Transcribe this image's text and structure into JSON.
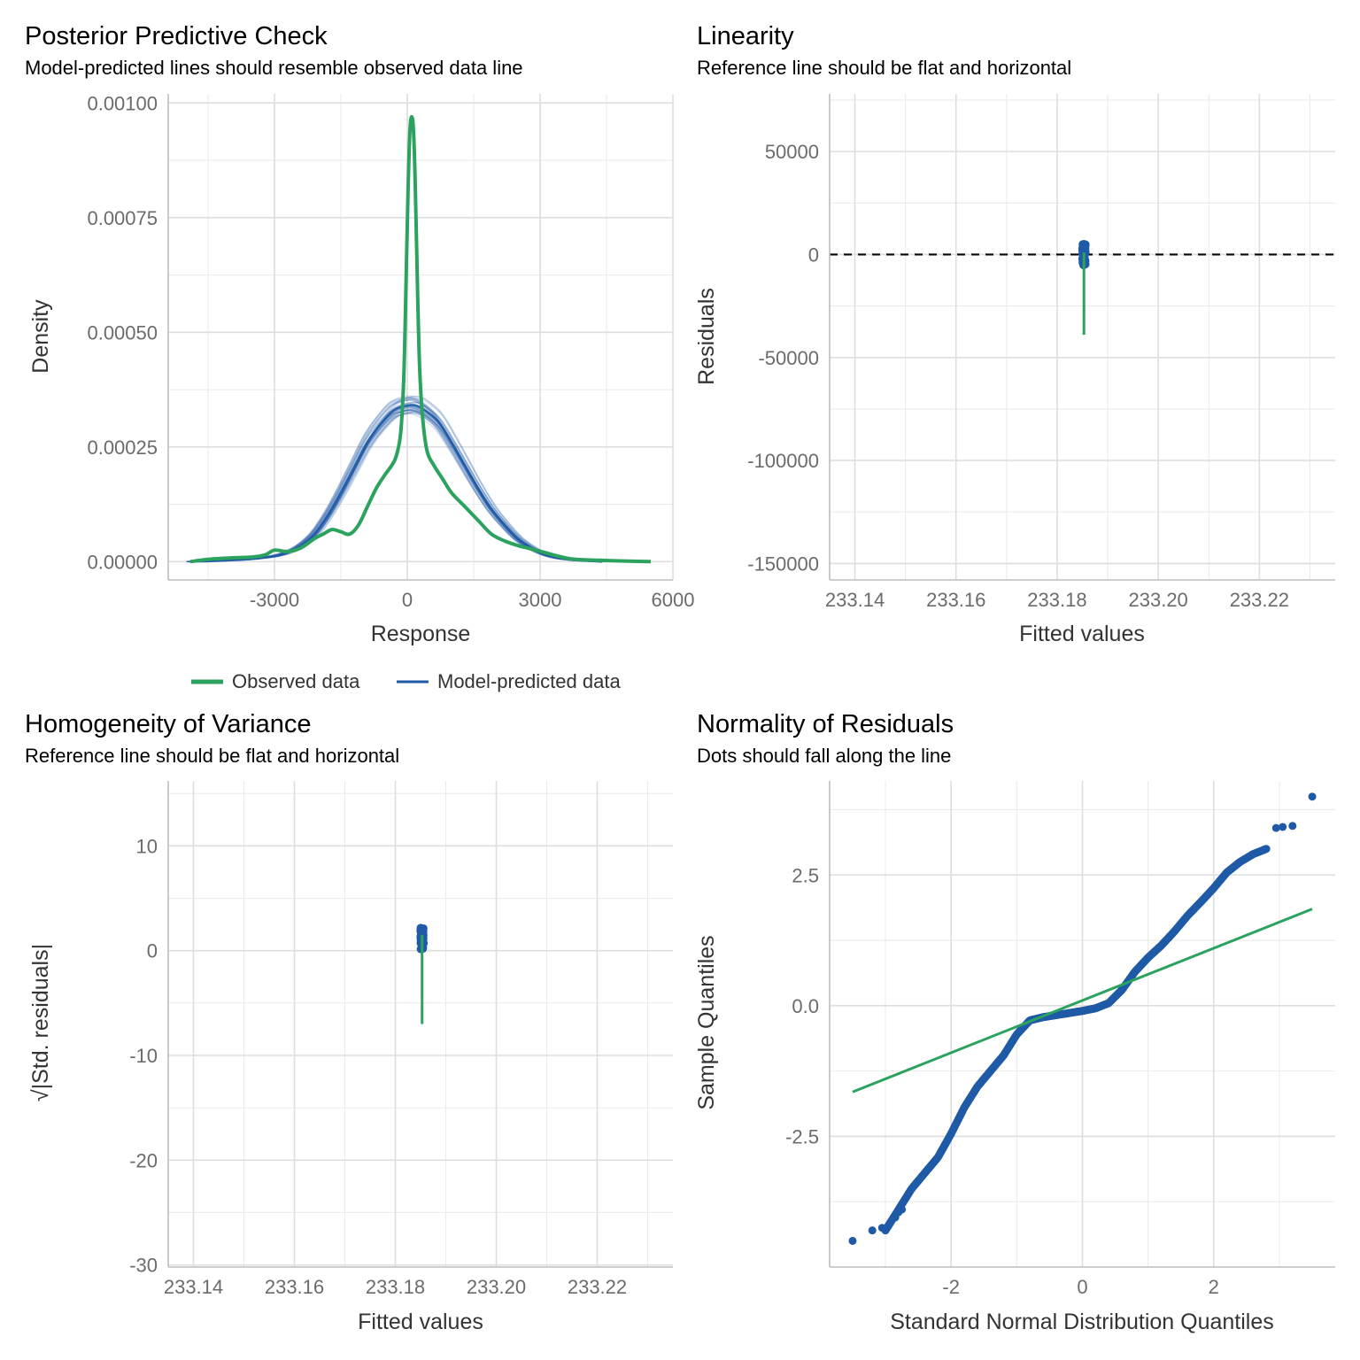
{
  "colors": {
    "observed": "#2ca25f",
    "predicted": "#1f5aa6",
    "reference": "#2ca25f",
    "points": "#1f5aa6",
    "zero_line": "#000000"
  },
  "chart_data": [
    {
      "id": "ppc",
      "type": "line",
      "title": "Posterior Predictive Check",
      "subtitle": "Model-predicted lines should resemble observed data line",
      "xlabel": "Response",
      "ylabel": "Density",
      "xlim": [
        -5400,
        6000
      ],
      "ylim": [
        -4e-05,
        0.00102
      ],
      "xticks": [
        -3000,
        0,
        3000,
        6000
      ],
      "xtick_labels": [
        "-3000",
        "0",
        "3000",
        "6000"
      ],
      "yticks": [
        0,
        0.00025,
        0.0005,
        0.00075,
        0.001
      ],
      "ytick_labels": [
        "0.00000",
        "0.00025",
        "0.00050",
        "0.00075",
        "0.00100"
      ],
      "grid": true,
      "legend": {
        "placement": "bottom",
        "entries": [
          "Observed data",
          "Model-predicted data"
        ]
      },
      "series": [
        {
          "name": "Observed data",
          "x": [
            -4900,
            -4500,
            -4000,
            -3500,
            -3200,
            -3000,
            -2700,
            -2400,
            -2100,
            -1900,
            -1700,
            -1500,
            -1300,
            -1100,
            -900,
            -700,
            -500,
            -350,
            -250,
            -150,
            -80,
            -30,
            20,
            60,
            100,
            140,
            180,
            230,
            280,
            350,
            450,
            600,
            800,
            1000,
            1300,
            1600,
            1900,
            2200,
            2500,
            2700,
            2900,
            3100,
            3400,
            3700,
            4000,
            4300,
            4600,
            5000,
            5500
          ],
          "y": [
            0,
            5e-06,
            8e-06,
            1e-05,
            1.5e-05,
            2.5e-05,
            2.2e-05,
            3e-05,
            5e-05,
            6e-05,
            7e-05,
            6.5e-05,
            6e-05,
            8e-05,
            0.00012,
            0.00016,
            0.00019,
            0.00021,
            0.00023,
            0.00028,
            0.0004,
            0.0006,
            0.00082,
            0.00094,
            0.00097,
            0.00094,
            0.00082,
            0.0006,
            0.00042,
            0.00031,
            0.00024,
            0.00021,
            0.00018,
            0.00015,
            0.00012,
            9e-05,
            6e-05,
            4.5e-05,
            3.5e-05,
            3e-05,
            2.5e-05,
            2e-05,
            1.2e-05,
            6e-06,
            4e-06,
            3e-06,
            2e-06,
            1e-06,
            0
          ]
        },
        {
          "name": "Model-predicted data",
          "x": [
            -4900,
            -4500,
            -4000,
            -3500,
            -3000,
            -2700,
            -2400,
            -2100,
            -1800,
            -1500,
            -1200,
            -900,
            -600,
            -300,
            0,
            200,
            400,
            700,
            1000,
            1300,
            1600,
            1900,
            2200,
            2500,
            2800,
            3100,
            3400,
            3700,
            4000,
            4400
          ],
          "y": [
            0,
            1e-06,
            3e-06,
            6e-06,
            1.2e-05,
            2e-05,
            3.5e-05,
            6e-05,
            0.0001,
            0.00015,
            0.000205,
            0.00026,
            0.0003,
            0.00033,
            0.00034,
            0.00034,
            0.00033,
            0.000305,
            0.00026,
            0.00021,
            0.00016,
            0.000115,
            8e-05,
            5e-05,
            3e-05,
            1.6e-05,
            8e-06,
            4e-06,
            2e-06,
            0
          ]
        }
      ]
    },
    {
      "id": "linearity",
      "type": "scatter",
      "title": "Linearity",
      "subtitle": "Reference line should be flat and horizontal",
      "xlabel": "Fitted values",
      "ylabel": "Residuals",
      "xlim": [
        233.135,
        233.235
      ],
      "ylim": [
        -158000,
        78000
      ],
      "xticks": [
        233.14,
        233.16,
        233.18,
        233.2,
        233.22
      ],
      "xtick_labels": [
        "233.14",
        "233.16",
        "233.18",
        "233.20",
        "233.22"
      ],
      "yticks": [
        -150000,
        -100000,
        -50000,
        0,
        50000
      ],
      "ytick_labels": [
        "-150000",
        "-100000",
        "-50000",
        "0",
        "50000"
      ],
      "grid": true,
      "zero_line": 0,
      "fitted_x": 233.1853,
      "residual_range": [
        -5500,
        5500
      ],
      "reference_line_y_range": [
        -39000,
        1000
      ]
    },
    {
      "id": "homogeneity",
      "type": "scatter",
      "title": "Homogeneity of Variance",
      "subtitle": "Reference line should be flat and horizontal",
      "xlabel": "Fitted values",
      "ylabel": "√|Std. residuals|",
      "xlim": [
        233.135,
        233.235
      ],
      "ylim": [
        -30.2,
        16.2
      ],
      "xticks": [
        233.14,
        233.16,
        233.18,
        233.2,
        233.22
      ],
      "xtick_labels": [
        "233.14",
        "233.16",
        "233.18",
        "233.20",
        "233.22"
      ],
      "yticks": [
        -30,
        -20,
        -10,
        0,
        10
      ],
      "ytick_labels": [
        "-30",
        "-20",
        "-10",
        "0",
        "10"
      ],
      "grid": true,
      "fitted_x": 233.1853,
      "value_range": [
        0.05,
        2.2
      ],
      "reference_line_y_range": [
        -7.0,
        1.5
      ]
    },
    {
      "id": "qq",
      "type": "scatter",
      "title": "Normality of Residuals",
      "subtitle": "Dots should fall along the line",
      "xlabel": "Standard Normal Distribution Quantiles",
      "ylabel": "Sample Quantiles",
      "xlim": [
        -3.85,
        3.85
      ],
      "ylim": [
        -5.0,
        4.3
      ],
      "xticks": [
        -2,
        0,
        2
      ],
      "xtick_labels": [
        "-2",
        "0",
        "2"
      ],
      "yticks": [
        -2.5,
        0,
        2.5
      ],
      "ytick_labels": [
        "-2.5",
        "0.0",
        "2.5"
      ],
      "grid": true,
      "reference_line": {
        "x": [
          -3.5,
          3.5
        ],
        "y": [
          -1.65,
          1.85
        ]
      },
      "quantile_curve": {
        "x": [
          -3.0,
          -2.6,
          -2.2,
          -2.0,
          -1.8,
          -1.6,
          -1.4,
          -1.2,
          -1.0,
          -0.8,
          -0.6,
          -0.4,
          -0.2,
          0.0,
          0.2,
          0.4,
          0.6,
          0.8,
          1.0,
          1.2,
          1.4,
          1.6,
          1.8,
          2.0,
          2.2,
          2.4,
          2.6,
          2.8
        ],
        "y": [
          -4.3,
          -3.5,
          -2.9,
          -2.45,
          -1.95,
          -1.55,
          -1.25,
          -0.95,
          -0.55,
          -0.28,
          -0.22,
          -0.18,
          -0.14,
          -0.1,
          -0.05,
          0.05,
          0.3,
          0.65,
          0.92,
          1.15,
          1.42,
          1.72,
          1.98,
          2.25,
          2.55,
          2.75,
          2.9,
          3.0
        ]
      },
      "outliers": {
        "x": [
          -3.5,
          -3.2,
          -3.05,
          -2.95,
          -2.85,
          -2.8,
          -2.75,
          2.95,
          3.05,
          3.2,
          3.5
        ],
        "y": [
          -4.5,
          -4.3,
          -4.25,
          -4.2,
          -4.05,
          -3.95,
          -3.9,
          3.4,
          3.42,
          3.44,
          4.0
        ]
      }
    }
  ]
}
